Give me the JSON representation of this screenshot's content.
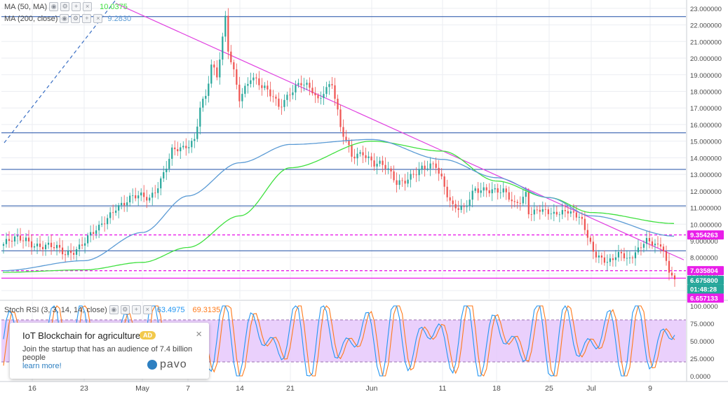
{
  "colors": {
    "up": "#26a69a",
    "down": "#ef5350",
    "ma50": "#3fe03f",
    "ma200": "#5b9bd5",
    "trendline": "#e040e0",
    "hline_blue": "#1f4fa5",
    "hline_magenta": "#e91ee9",
    "stoch_k": "#2196f3",
    "stoch_d": "#ff7a1a",
    "stoch_band": "#e6c8fb",
    "grid": "#ebedf2"
  },
  "legend": {
    "ma50": {
      "label": "MA (50, MA)",
      "value": "10.0375"
    },
    "ma200": {
      "label": "MA (200, close)",
      "value": "9.2830"
    },
    "stoch": {
      "label": "Stoch RSI (3, 3, 14, 14, close)",
      "k_value": "63.4975",
      "d_value": "69.3135"
    }
  },
  "price_axis": {
    "ticks": [
      "23.000000",
      "22.000000",
      "21.000000",
      "20.000000",
      "19.000000",
      "18.000000",
      "17.000000",
      "16.000000",
      "15.000000",
      "14.000000",
      "13.000000",
      "12.000000",
      "11.000000",
      "10.000000",
      "9.000000",
      "8.000000",
      "7.000000",
      "6.000000"
    ],
    "badges": [
      {
        "text": "9.354263",
        "price": 9.354263,
        "color": "#e91ee9"
      },
      {
        "text": "7.035804",
        "price": 7.2,
        "color": "#e91ee9"
      },
      {
        "text": "6.675800",
        "price": 6.62,
        "color": "#26a69a"
      },
      {
        "text": "01:48:28",
        "price": 6.08,
        "color": "#26a69a"
      },
      {
        "text": "6.657133",
        "price": 5.55,
        "color": "#e91ee9"
      }
    ]
  },
  "stoch_axis": {
    "ticks": [
      "100.0000",
      "75.0000",
      "50.0000",
      "25.0000",
      "0.0000"
    ]
  },
  "time_axis": {
    "labels": [
      "16",
      "23",
      "May",
      "7",
      "14",
      "21",
      "Jun",
      "11",
      "18",
      "25",
      "Jul",
      "9"
    ]
  },
  "chart_data": [
    {
      "type": "line",
      "title": "",
      "ylim": [
        5.5,
        23.5
      ],
      "x": [
        "16",
        "23",
        "May",
        "7",
        "14",
        "21",
        "Jun",
        "11",
        "18",
        "25",
        "Jul",
        "9"
      ],
      "series": [
        {
          "name": "MA (50, MA)",
          "values": [
            7.1,
            7.25,
            7.7,
            8.6,
            10.5,
            13.4,
            15.0,
            14.4,
            12.6,
            11.6,
            10.7,
            10.04
          ]
        },
        {
          "name": "MA (200, close)",
          "values": [
            7.2,
            7.8,
            9.5,
            11.7,
            13.7,
            14.8,
            15.1,
            13.9,
            12.8,
            11.6,
            10.5,
            9.28
          ]
        }
      ],
      "close": [
        8.8,
        12.2,
        21.0,
        17.5,
        13.8,
        11.6,
        14.3,
        11.2,
        10.6,
        7.7,
        8.3,
        6.68
      ],
      "horizontal_levels": [
        22.5,
        15.5,
        13.3,
        11.1,
        9.354263,
        8.4,
        7.2,
        6.75
      ],
      "stoch_rsi": {
        "name": "Stoch RSI (3, 3, 14, 14, close)",
        "ylim": [
          0,
          100
        ],
        "band": [
          20,
          80
        ]
      }
    }
  ],
  "ad": {
    "title": "IoT Blockchain for agriculture",
    "badge": "AD",
    "text": "Join the startup that has an audience of 7.4 billion people",
    "link": "learn more!",
    "brand": "pavo",
    "close": "×"
  }
}
